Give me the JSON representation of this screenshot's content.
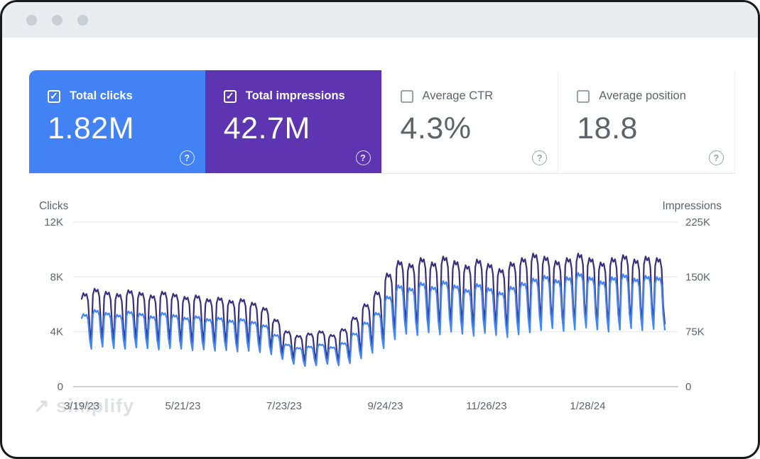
{
  "window": {
    "control_dots": 3
  },
  "icons": {
    "check": "✓",
    "help": "?",
    "arrow": "↗"
  },
  "metric_cards": [
    {
      "id": "total-clicks",
      "label": "Total clicks",
      "value": "1.82M",
      "checked": true,
      "background": "#4282f5"
    },
    {
      "id": "total-impressions",
      "label": "Total impressions",
      "value": "42.7M",
      "checked": true,
      "background": "#5e35b1"
    },
    {
      "id": "average-ctr",
      "label": "Average CTR",
      "value": "4.3%",
      "checked": false,
      "background": ""
    },
    {
      "id": "average-position",
      "label": "Average position",
      "value": "18.8",
      "checked": false,
      "background": ""
    }
  ],
  "watermark": {
    "text": "simplify"
  },
  "chart_data": {
    "type": "line",
    "title": "",
    "grid": true,
    "legend_position": "none",
    "left_axis": {
      "label": "Clicks",
      "max": 12000,
      "ticks": [
        "0",
        "4K",
        "8K",
        "12K"
      ]
    },
    "right_axis": {
      "label": "Impressions",
      "max": 225000,
      "ticks": [
        "0",
        "75K",
        "150K",
        "225K"
      ]
    },
    "x_ticks": [
      "3/19/23",
      "5/21/23",
      "7/23/23",
      "9/24/23",
      "11/26/23",
      "1/28/24"
    ],
    "tick_interval_days": 63,
    "days_total": 364,
    "weekday_shape": [
      0.88,
      1.0,
      0.94,
      0.98,
      0.84,
      0.28,
      0.0
    ],
    "colors": {
      "clicks": "#4285f4",
      "impressions": "#38307e",
      "gridline": "#ececec",
      "zeroline": "#c0c4c7",
      "tick_text": "#5f6368"
    },
    "series": [
      {
        "name": "Clicks",
        "axis": "left",
        "color": "#4285f4",
        "weekly_hi": [
          5300,
          5600,
          5400,
          5250,
          5500,
          5350,
          5150,
          5400,
          5250,
          5050,
          5150,
          4950,
          5050,
          4850,
          4950,
          4750,
          4500,
          3800,
          3100,
          2850,
          2950,
          3100,
          2900,
          3200,
          3900,
          4700,
          5400,
          6600,
          7400,
          7200,
          7600,
          7300,
          7700,
          7400,
          7100,
          7500,
          7200,
          6900,
          7300,
          7600,
          7900,
          8100,
          7800,
          8000,
          8300,
          8000,
          7700,
          8000,
          8200,
          7900,
          8100,
          8000
        ],
        "weekly_lo": [
          2750,
          2900,
          2800,
          2750,
          2850,
          2800,
          2700,
          2800,
          2750,
          2650,
          2700,
          2600,
          2650,
          2550,
          2600,
          2500,
          2350,
          2000,
          1650,
          1500,
          1550,
          1650,
          1550,
          1700,
          2050,
          2450,
          2800,
          3450,
          3850,
          3750,
          3950,
          3800,
          4000,
          3850,
          3700,
          3900,
          3750,
          3600,
          3800,
          3950,
          4100,
          4250,
          4050,
          4150,
          4300,
          4150,
          4000,
          4150,
          4250,
          4100,
          4200,
          4150
        ]
      },
      {
        "name": "Impressions",
        "axis": "right",
        "color": "#38307e",
        "weekly_hi": [
          128000,
          134000,
          130000,
          127000,
          132000,
          129000,
          125000,
          130000,
          127000,
          123000,
          125000,
          120000,
          122000,
          118000,
          120000,
          115000,
          108000,
          92000,
          76000,
          70000,
          73000,
          76000,
          71000,
          79000,
          95000,
          113000,
          130000,
          155000,
          172000,
          168000,
          176000,
          170000,
          178000,
          172000,
          166000,
          174000,
          168000,
          161000,
          170000,
          176000,
          182000,
          178000,
          172000,
          176000,
          182000,
          176000,
          170000,
          176000,
          180000,
          174000,
          178000,
          176000
        ],
        "weekly_lo": [
          62000,
          65000,
          63000,
          61000,
          64000,
          62000,
          60000,
          63000,
          61000,
          59000,
          60000,
          58000,
          59000,
          57000,
          58000,
          55000,
          52000,
          45000,
          38000,
          35000,
          36000,
          38000,
          35000,
          39000,
          47000,
          55000,
          63000,
          75000,
          84000,
          82000,
          86000,
          83000,
          87000,
          84000,
          81000,
          85000,
          82000,
          79000,
          83000,
          86000,
          89000,
          87000,
          84000,
          86000,
          89000,
          86000,
          83000,
          86000,
          88000,
          85000,
          87000,
          86000
        ]
      }
    ]
  }
}
